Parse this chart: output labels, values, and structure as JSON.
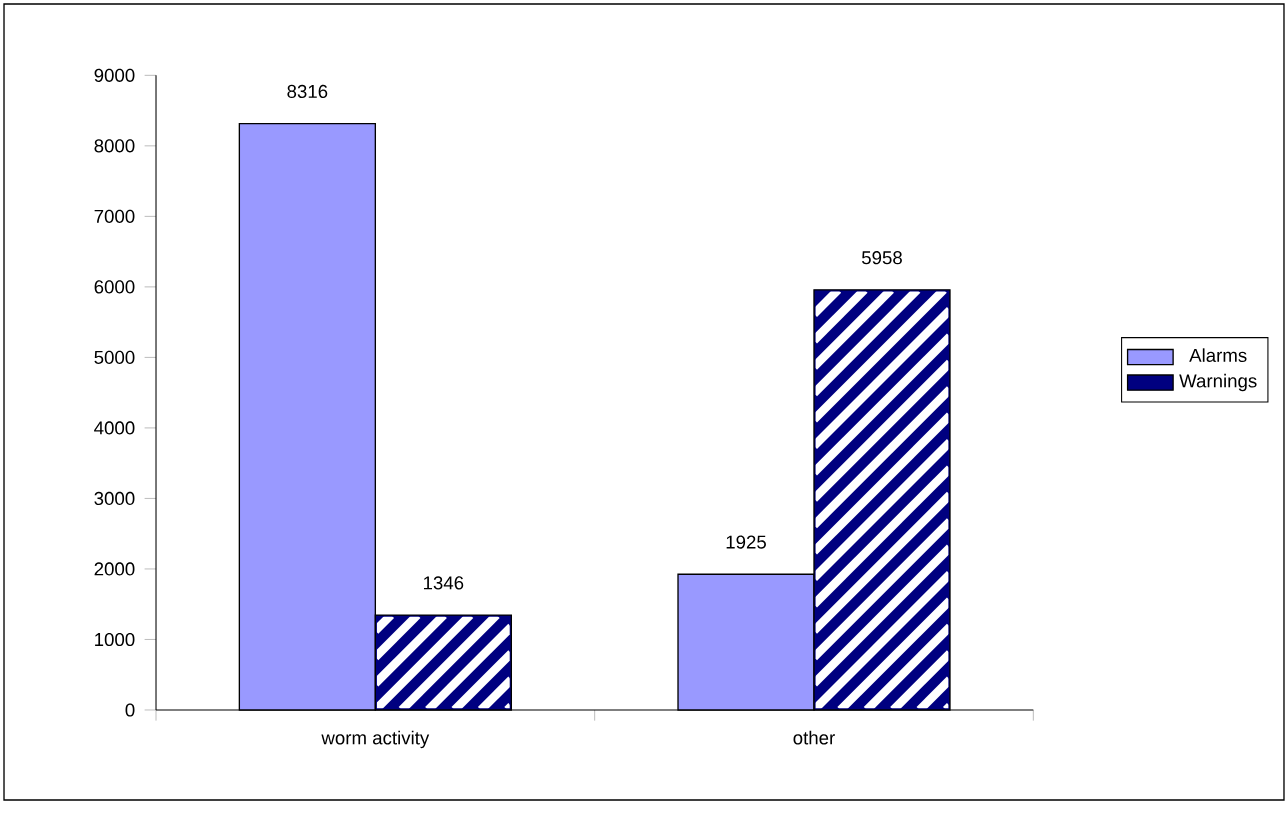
{
  "chart_data": {
    "type": "bar",
    "categories": [
      "worm activity",
      "other"
    ],
    "series": [
      {
        "name": "Alarms",
        "color": "#9999ff",
        "values": [
          8316,
          1925
        ]
      },
      {
        "name": "Warnings",
        "color": "#000080",
        "values": [
          1346,
          5958
        ]
      }
    ],
    "ylim": [
      0,
      9000
    ],
    "yticks": [
      0,
      1000,
      2000,
      3000,
      4000,
      5000,
      6000,
      7000,
      8000,
      9000
    ],
    "data_labels": true,
    "legend": "right"
  }
}
